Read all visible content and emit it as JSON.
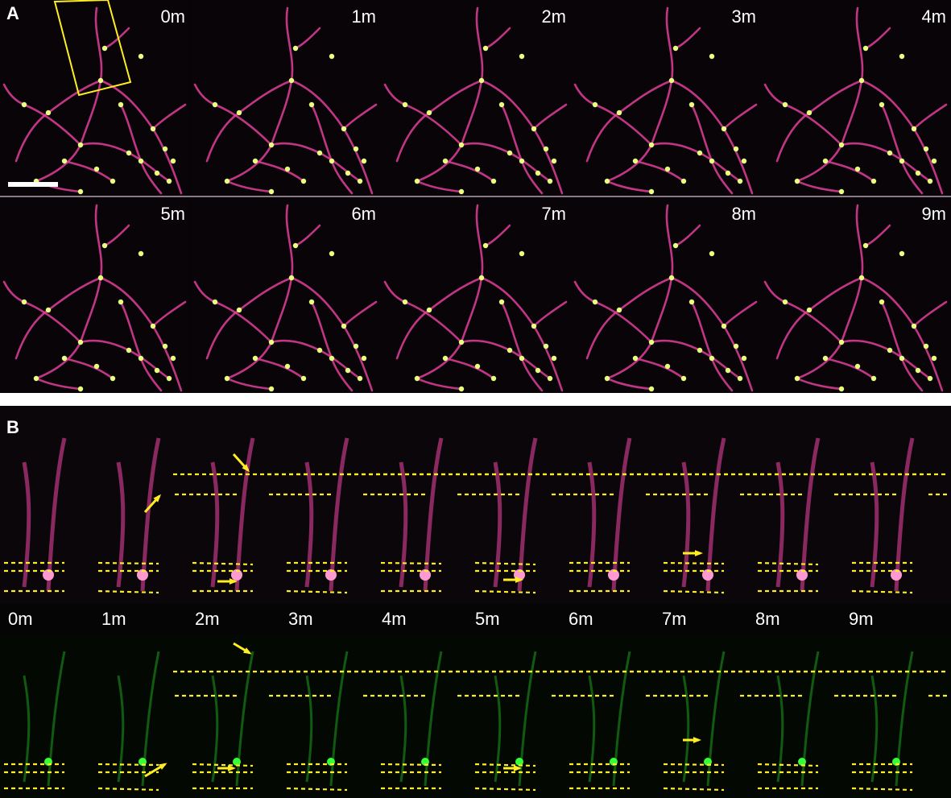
{
  "panel_a": {
    "label": "A",
    "frames": [
      "0m",
      "1m",
      "2m",
      "3m",
      "4m",
      "5m",
      "6m",
      "7m",
      "8m",
      "9m"
    ]
  },
  "panel_b": {
    "label": "B",
    "times": [
      "0m",
      "1m",
      "2m",
      "3m",
      "4m",
      "5m",
      "6m",
      "7m",
      "8m",
      "9m"
    ]
  },
  "colors": {
    "dendrite": "#e0409a",
    "puncta": "#e8ff80",
    "green_channel": "#22c022",
    "annotation": "#ffee22",
    "background": "#070407"
  }
}
